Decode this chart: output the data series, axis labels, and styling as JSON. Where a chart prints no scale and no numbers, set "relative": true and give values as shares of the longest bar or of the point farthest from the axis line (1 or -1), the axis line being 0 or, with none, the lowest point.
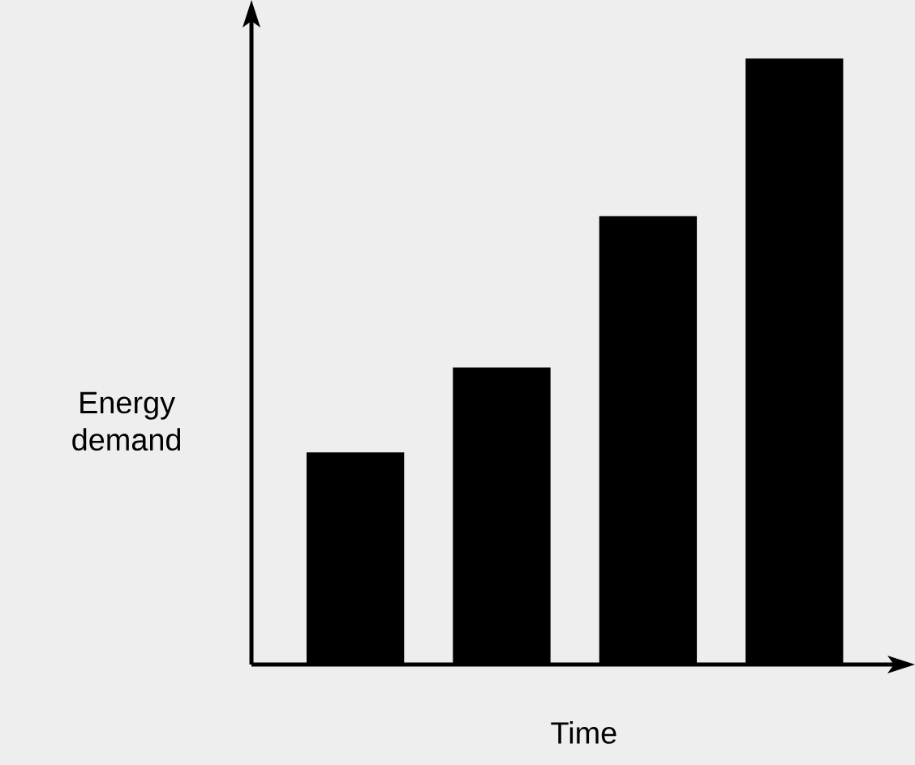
{
  "chart_data": {
    "type": "bar",
    "xlabel": "Time",
    "ylabel": "Energy\ndemand",
    "categories": [
      null,
      null,
      null,
      null
    ],
    "relative": true,
    "values": [
      0.35,
      0.49,
      0.74,
      1
    ],
    "color": "#000000"
  }
}
